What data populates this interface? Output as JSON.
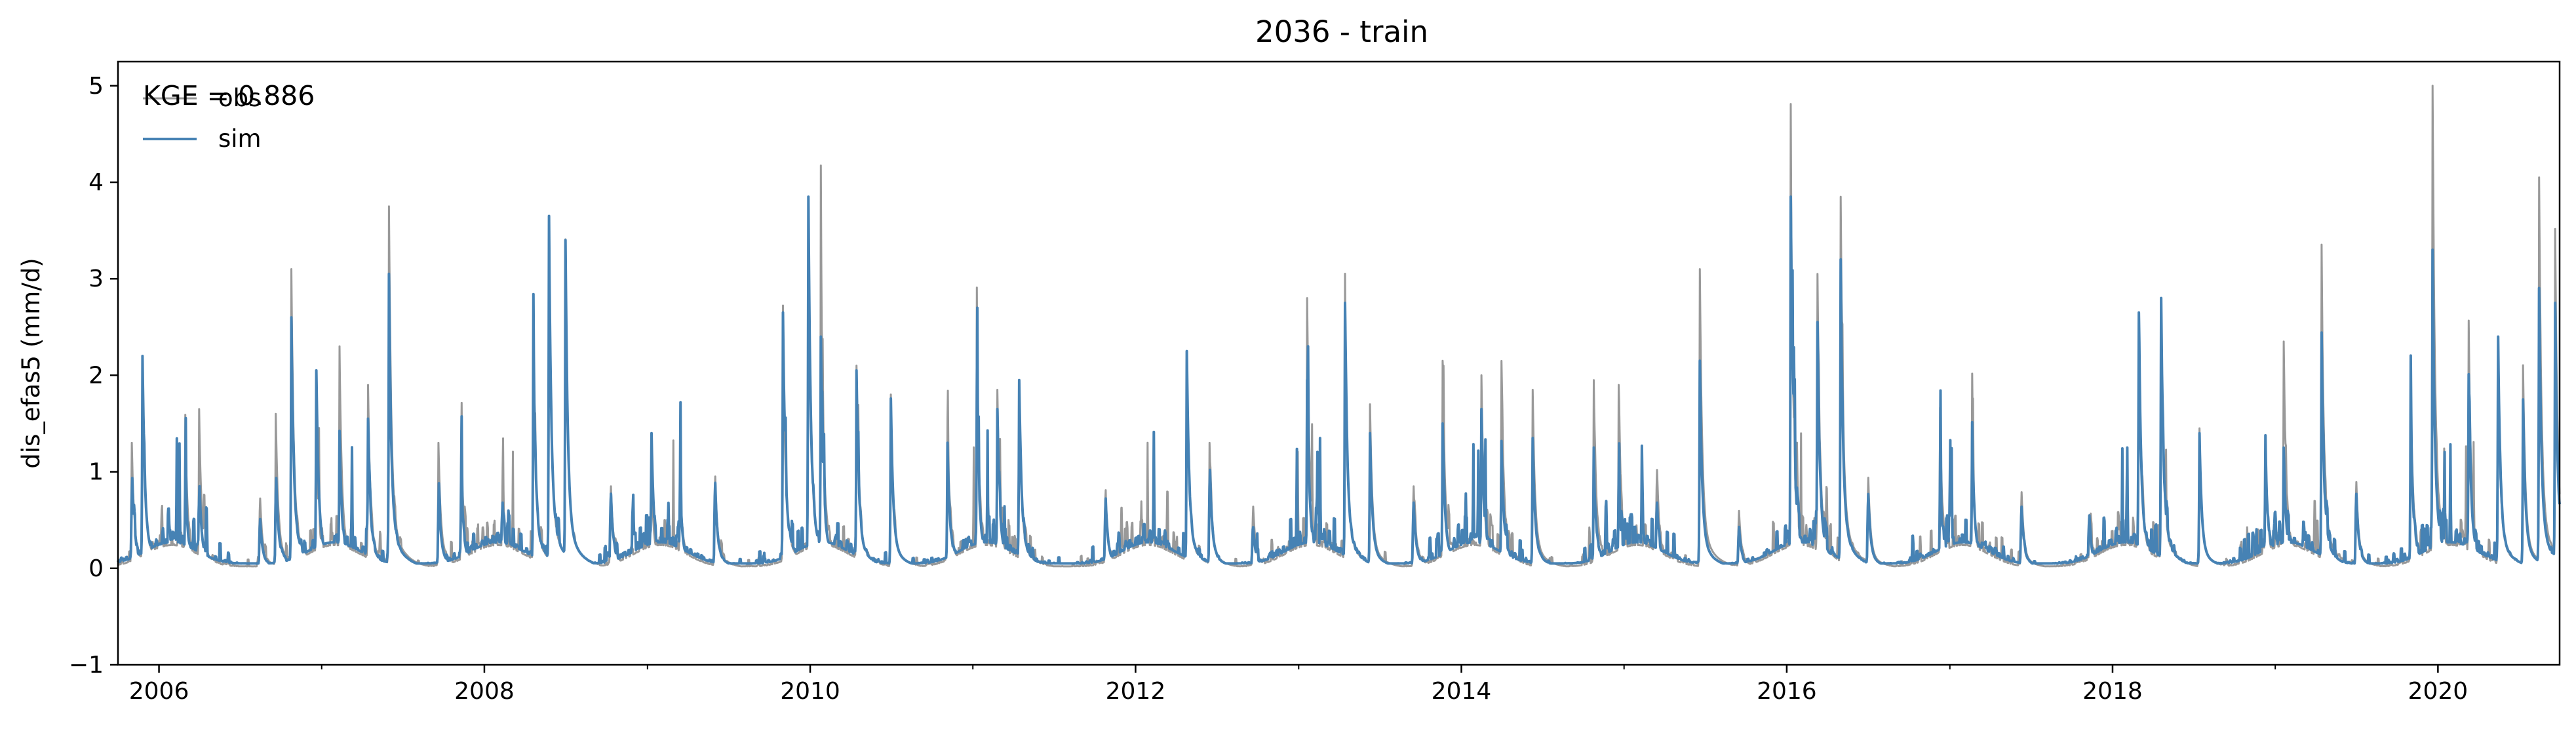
{
  "chart_data": {
    "type": "line",
    "title": "2036 - train",
    "ylabel": "dis_efas5 (mm/d)",
    "xlabel": "",
    "annotation": "KGE = 0.886",
    "xlim": [
      "2005-10-01",
      "2020-09-30"
    ],
    "ylim": [
      -1,
      5.25
    ],
    "yticks": [
      -1,
      0,
      1,
      2,
      3,
      4,
      5
    ],
    "xticks": [
      "2006",
      "2008",
      "2010",
      "2012",
      "2014",
      "2016",
      "2018",
      "2020"
    ],
    "legend": {
      "placement": "top-left",
      "frame": false
    },
    "grid": false,
    "series": [
      {
        "name": "obs",
        "color": "#999999",
        "peaks": [
          [
            "2005-11-01",
            1.3
          ],
          [
            "2005-11-25",
            2.2
          ],
          [
            "2006-03-01",
            1.5
          ],
          [
            "2006-04-01",
            1.65
          ],
          [
            "2006-08-15",
            0.85
          ],
          [
            "2006-09-20",
            1.6
          ],
          [
            "2006-10-25",
            3.1
          ],
          [
            "2006-12-20",
            1.4
          ],
          [
            "2007-02-10",
            2.3
          ],
          [
            "2007-04-15",
            1.9
          ],
          [
            "2007-06-01",
            3.75
          ],
          [
            "2007-09-20",
            1.3
          ],
          [
            "2007-11-10",
            1.3
          ],
          [
            "2008-02-10",
            0.95
          ],
          [
            "2008-04-20",
            2.4
          ],
          [
            "2008-05-25",
            3.6
          ],
          [
            "2008-07-01",
            3.4
          ],
          [
            "2008-10-10",
            1.0
          ],
          [
            "2009-01-10",
            0.95
          ],
          [
            "2009-03-15",
            0.9
          ],
          [
            "2009-06-01",
            1.1
          ],
          [
            "2009-11-01",
            2.7
          ],
          [
            "2009-12-28",
            3.8
          ],
          [
            "2010-01-25",
            3.45
          ],
          [
            "2010-04-15",
            2.1
          ],
          [
            "2010-07-01",
            1.8
          ],
          [
            "2010-11-05",
            1.55
          ],
          [
            "2011-01-10",
            2.25
          ],
          [
            "2011-02-25",
            1.85
          ],
          [
            "2011-04-15",
            1.95
          ],
          [
            "2011-10-25",
            0.9
          ],
          [
            "2012-04-25",
            2.1
          ],
          [
            "2012-06-15",
            1.3
          ],
          [
            "2012-09-20",
            0.75
          ],
          [
            "2013-01-20",
            2.8
          ],
          [
            "2013-04-15",
            2.75
          ],
          [
            "2013-06-10",
            1.7
          ],
          [
            "2013-09-15",
            1.0
          ],
          [
            "2013-11-20",
            2.15
          ],
          [
            "2014-02-15",
            2.0
          ],
          [
            "2014-04-01",
            2.1
          ],
          [
            "2014-06-10",
            1.85
          ],
          [
            "2014-10-25",
            1.95
          ],
          [
            "2014-12-20",
            1.9
          ],
          [
            "2015-03-15",
            1.2
          ],
          [
            "2015-06-20",
            3.1
          ],
          [
            "2015-09-15",
            0.7
          ],
          [
            "2016-01-10",
            4.2
          ],
          [
            "2016-03-10",
            3.05
          ],
          [
            "2016-05-01",
            3.85
          ],
          [
            "2016-07-01",
            1.1
          ],
          [
            "2016-12-10",
            1.55
          ],
          [
            "2017-02-20",
            1.4
          ],
          [
            "2017-06-10",
            0.9
          ],
          [
            "2017-11-10",
            0.65
          ],
          [
            "2018-03-01",
            2.65
          ],
          [
            "2018-04-20",
            2.75
          ],
          [
            "2018-07-15",
            1.45
          ],
          [
            "2018-12-10",
            1.25
          ],
          [
            "2019-01-20",
            2.35
          ],
          [
            "2019-04-15",
            3.25
          ],
          [
            "2019-07-01",
            1.05
          ],
          [
            "2019-11-01",
            1.9
          ],
          [
            "2019-12-20",
            5.0
          ],
          [
            "2020-03-10",
            2.45
          ],
          [
            "2020-05-15",
            2.25
          ],
          [
            "2020-07-10",
            2.1
          ],
          [
            "2020-08-15",
            4.05
          ],
          [
            "2020-09-20",
            3.5
          ]
        ]
      },
      {
        "name": "sim",
        "color": "#4682b4",
        "peaks": [
          [
            "2005-11-01",
            1.1
          ],
          [
            "2005-11-25",
            2.2
          ],
          [
            "2006-03-01",
            1.0
          ],
          [
            "2006-04-01",
            1.0
          ],
          [
            "2006-08-15",
            0.6
          ],
          [
            "2006-09-20",
            1.1
          ],
          [
            "2006-10-25",
            2.6
          ],
          [
            "2006-12-20",
            2.05
          ],
          [
            "2007-02-10",
            1.4
          ],
          [
            "2007-04-15",
            1.55
          ],
          [
            "2007-06-01",
            3.05
          ],
          [
            "2007-09-20",
            0.9
          ],
          [
            "2007-11-10",
            1.0
          ],
          [
            "2008-02-10",
            0.8
          ],
          [
            "2008-04-20",
            2.35
          ],
          [
            "2008-05-25",
            3.65
          ],
          [
            "2008-07-01",
            3.4
          ],
          [
            "2008-10-10",
            0.9
          ],
          [
            "2009-01-10",
            1.4
          ],
          [
            "2009-03-15",
            0.9
          ],
          [
            "2009-06-01",
            1.0
          ],
          [
            "2009-11-01",
            2.65
          ],
          [
            "2009-12-28",
            3.85
          ],
          [
            "2010-01-25",
            2.4
          ],
          [
            "2010-04-15",
            2.05
          ],
          [
            "2010-07-01",
            1.75
          ],
          [
            "2010-11-05",
            1.3
          ],
          [
            "2011-01-10",
            1.85
          ],
          [
            "2011-02-25",
            1.65
          ],
          [
            "2011-04-15",
            1.95
          ],
          [
            "2011-10-25",
            0.85
          ],
          [
            "2012-04-25",
            2.25
          ],
          [
            "2012-06-15",
            1.2
          ],
          [
            "2012-09-20",
            0.5
          ],
          [
            "2013-01-20",
            1.95
          ],
          [
            "2013-04-15",
            2.75
          ],
          [
            "2013-06-10",
            1.4
          ],
          [
            "2013-09-15",
            0.8
          ],
          [
            "2013-11-20",
            1.5
          ],
          [
            "2014-02-15",
            1.65
          ],
          [
            "2014-04-01",
            1.3
          ],
          [
            "2014-06-10",
            1.35
          ],
          [
            "2014-10-25",
            1.1
          ],
          [
            "2014-12-20",
            0.9
          ],
          [
            "2015-03-15",
            0.8
          ],
          [
            "2015-06-20",
            2.15
          ],
          [
            "2015-09-15",
            0.5
          ],
          [
            "2016-01-10",
            3.85
          ],
          [
            "2016-03-10",
            2.55
          ],
          [
            "2016-05-01",
            3.2
          ],
          [
            "2016-07-01",
            0.9
          ],
          [
            "2016-12-10",
            1.0
          ],
          [
            "2017-02-20",
            1.4
          ],
          [
            "2017-06-10",
            0.75
          ],
          [
            "2017-11-10",
            0.5
          ],
          [
            "2018-03-01",
            2.65
          ],
          [
            "2018-04-20",
            2.8
          ],
          [
            "2018-07-15",
            1.4
          ],
          [
            "2018-12-10",
            1.25
          ],
          [
            "2019-01-20",
            1.25
          ],
          [
            "2019-04-15",
            2.4
          ],
          [
            "2019-07-01",
            0.9
          ],
          [
            "2019-11-01",
            1.6
          ],
          [
            "2019-12-20",
            3.3
          ],
          [
            "2020-03-10",
            2.0
          ],
          [
            "2020-05-15",
            2.4
          ],
          [
            "2020-07-10",
            1.75
          ],
          [
            "2020-08-15",
            2.9
          ],
          [
            "2020-09-20",
            2.75
          ]
        ]
      }
    ]
  }
}
